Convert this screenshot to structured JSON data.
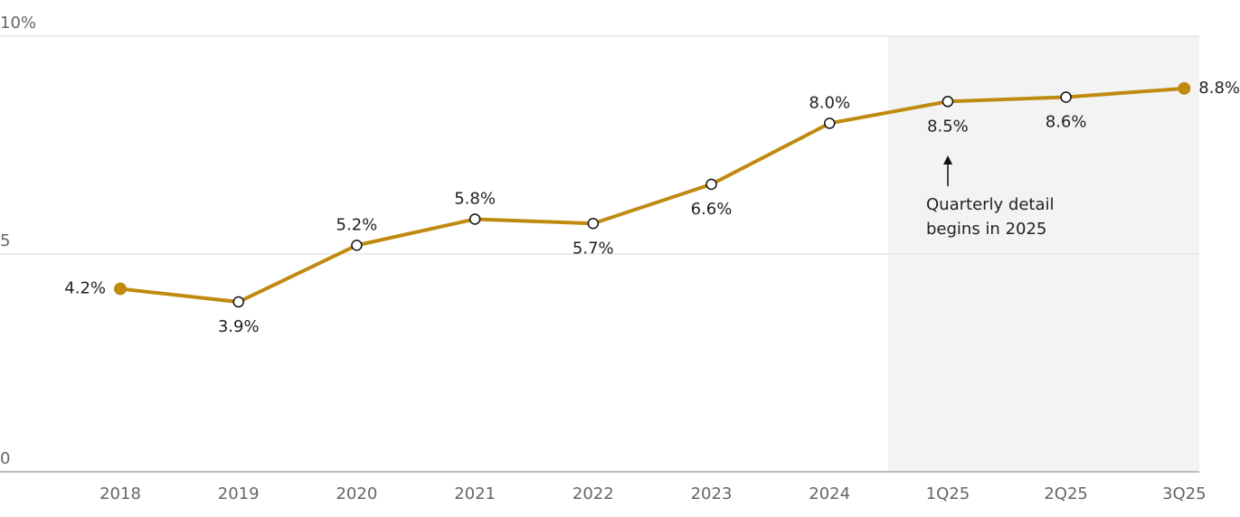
{
  "chart_data": {
    "type": "line",
    "categories": [
      "2018",
      "2019",
      "2020",
      "2021",
      "2022",
      "2023",
      "2024",
      "1Q25",
      "2Q25",
      "3Q25"
    ],
    "values": [
      4.2,
      3.9,
      5.2,
      5.8,
      5.7,
      6.6,
      8.0,
      8.5,
      8.6,
      8.8
    ],
    "value_labels": [
      "4.2%",
      "3.9%",
      "5.2%",
      "5.8%",
      "5.7%",
      "6.6%",
      "8.0%",
      "8.5%",
      "8.6%",
      "8.8%"
    ],
    "color": "#c08a10",
    "ylim": [
      0,
      10
    ],
    "yticks": [
      0,
      5,
      {
        "value": 10,
        "label": "10%"
      }
    ],
    "grid": true,
    "annotation": [
      "Quarterly detail",
      "begins in 2025"
    ]
  }
}
